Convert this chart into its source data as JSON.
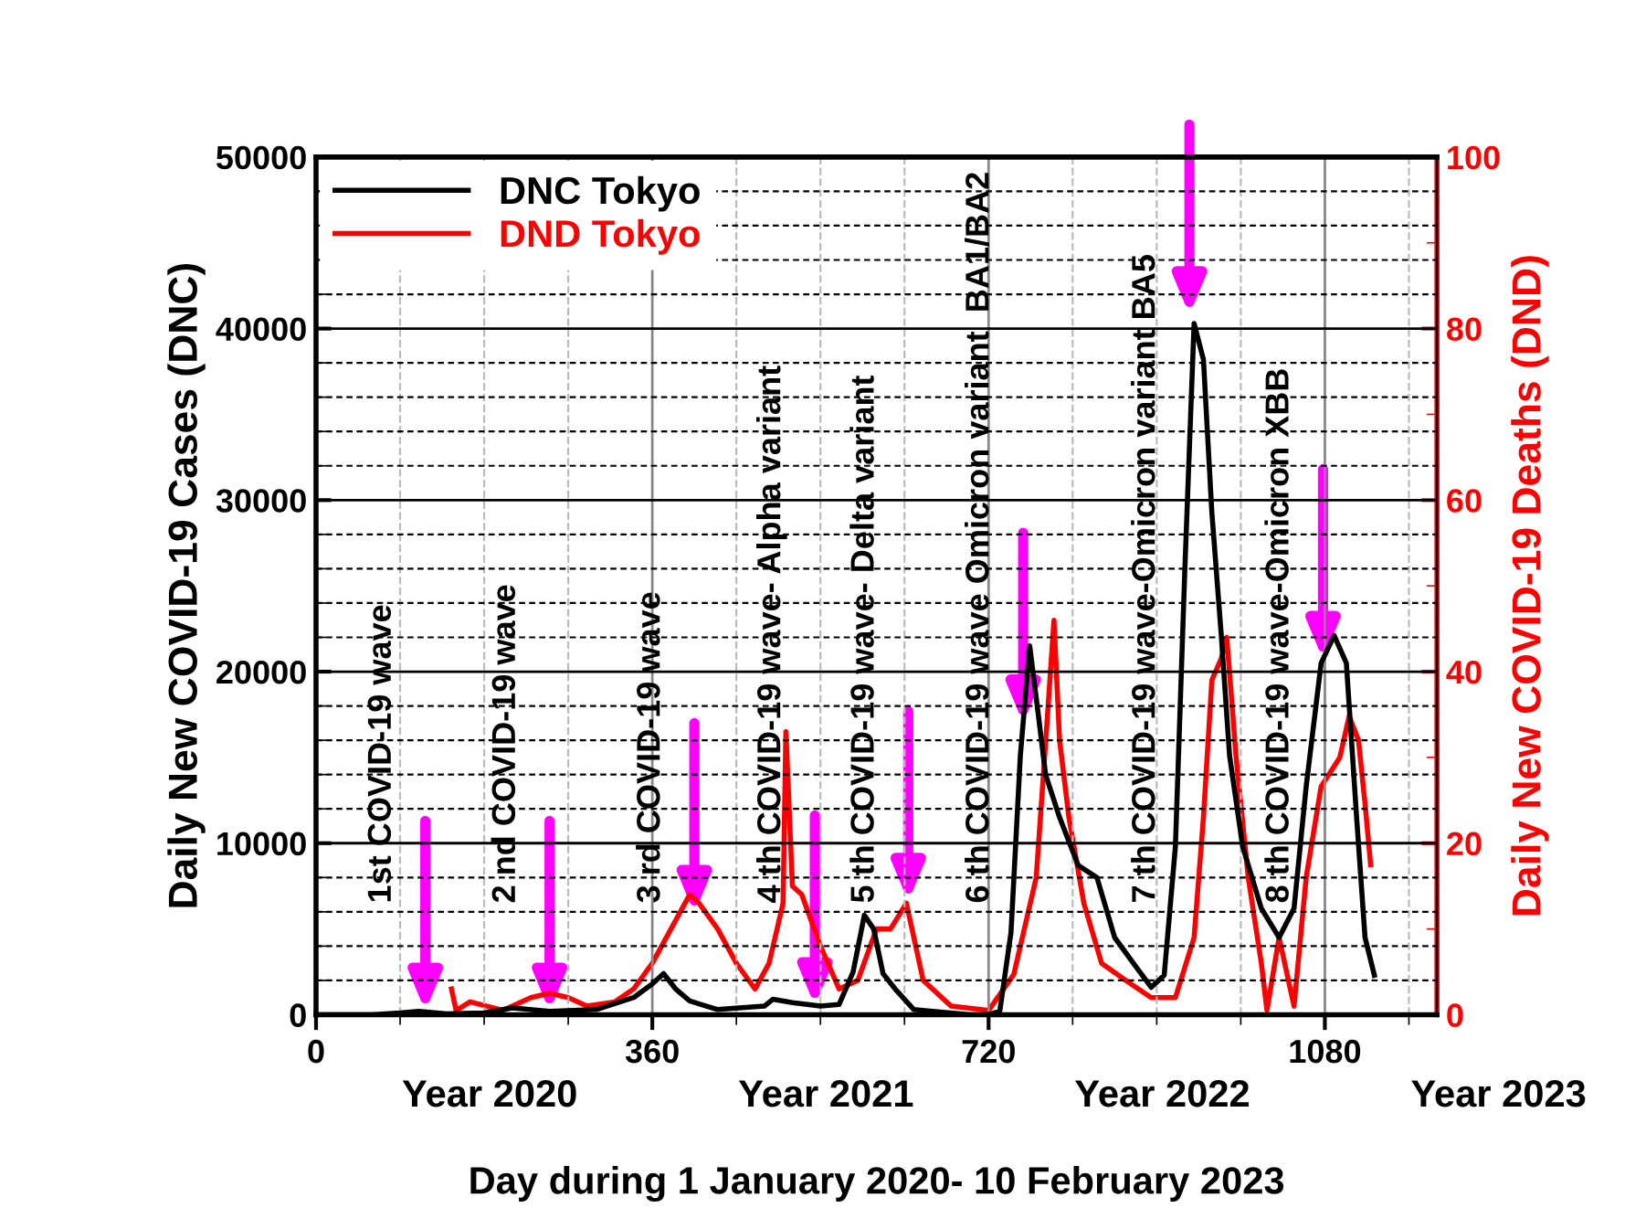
{
  "chart_data": {
    "type": "line",
    "xlabel": "Day during 1 January 2020- 10 February 2023",
    "ylabel": "Daily New COVID-19 Cases (DNC)",
    "y2label": "Daily New COVID-19 Deaths (DND)",
    "xlim": [
      0,
      1200
    ],
    "xticks": [
      0,
      360,
      720,
      1080
    ],
    "ylim": [
      0,
      50000
    ],
    "yticks": [
      0,
      10000,
      20000,
      30000,
      40000,
      50000
    ],
    "y2lim": [
      0,
      100
    ],
    "y2ticks": [
      0,
      20,
      40,
      60,
      80,
      100
    ],
    "grid": true,
    "legend": "top left",
    "line_style": "solid",
    "marker": "none",
    "series": [
      {
        "name": "DNC Tokyo",
        "color": "#000000",
        "x": [
          0,
          60,
          90,
          110,
          140,
          180,
          210,
          250,
          300,
          340,
          360,
          372,
          385,
          400,
          430,
          480,
          489,
          510,
          540,
          560,
          575,
          587,
          597,
          607,
          620,
          640,
          700,
          720,
          732,
          744,
          754,
          764,
          773,
          781,
          796,
          816,
          836,
          855,
          875,
          894,
          908,
          920,
          930,
          940,
          950,
          959,
          969,
          978,
          992,
          1012,
          1031,
          1047,
          1060,
          1076,
          1090,
          1103,
          1114,
          1123,
          1133
        ],
        "values": [
          0,
          0,
          100,
          200,
          50,
          100,
          400,
          200,
          300,
          1000,
          1800,
          2400,
          1500,
          800,
          300,
          500,
          900,
          700,
          500,
          600,
          2500,
          5800,
          5000,
          2400,
          1500,
          300,
          0,
          0,
          200,
          4800,
          15100,
          21500,
          17600,
          14000,
          11500,
          8700,
          8000,
          4500,
          3000,
          1600,
          2300,
          9800,
          25800,
          40300,
          38200,
          29300,
          22200,
          15100,
          9800,
          6200,
          4500,
          6200,
          13300,
          20500,
          22100,
          20500,
          11500,
          4500,
          2300
        ]
      },
      {
        "name": "DND Tokyo",
        "color": "#ff0000",
        "axis": "y2",
        "x": [
          145,
          150,
          165,
          200,
          230,
          250,
          270,
          290,
          320,
          340,
          360,
          380,
          400,
          410,
          430,
          450,
          470,
          485,
          500,
          503,
          510,
          520,
          540,
          560,
          580,
          600,
          615,
          632,
          650,
          680,
          720,
          747,
          771,
          781,
          790,
          796,
          806,
          822,
          841,
          867,
          894,
          920,
          940,
          950,
          959,
          969,
          975,
          985,
          998,
          1012,
          1018,
          1031,
          1047,
          1060,
          1076,
          1096,
          1106,
          1116,
          1123,
          1129
        ],
        "values": [
          3,
          0.5,
          1.5,
          0.5,
          2,
          2.5,
          2,
          1,
          1.5,
          3,
          6,
          10,
          14,
          13,
          10,
          6,
          3,
          6,
          13,
          33,
          15,
          14,
          8,
          3,
          4,
          10,
          10,
          13,
          4,
          1,
          0.5,
          4.7,
          16,
          31.6,
          46,
          32,
          23,
          13,
          6,
          4,
          2,
          2,
          9,
          23,
          39,
          41.5,
          44,
          30,
          16,
          6,
          0.5,
          9,
          1,
          16,
          26.6,
          30,
          34.8,
          32,
          24.6,
          17.5
        ]
      }
    ],
    "annotations": [
      {
        "text": "1st COVID-19 wave",
        "x": 117,
        "y": 200
      },
      {
        "text": "2 nd COVID-19 wave",
        "x": 250,
        "y": 200
      },
      {
        "text": "3 rd COVID-19 wave",
        "x": 405,
        "y": 5900
      },
      {
        "text": "4 th COVID-19 wave- Alpha variant",
        "x": 534,
        "y": 520
      },
      {
        "text": "5 th COVID-19 wave- Delta variant",
        "x": 634,
        "y": 6600
      },
      {
        "text": "6 th COVID-19 wave Omicron variant  BA1/BA2",
        "x": 757,
        "y": 17000
      },
      {
        "text": "7 th COVID-19 wave-Omicron variant BA5",
        "x": 935,
        "y": 40800
      },
      {
        "text": "8 th COVID-19 wave-Omicron XBB",
        "x": 1078,
        "y": 20700
      },
      "Year 2020",
      "Year 2021",
      "Year 2022",
      "Year 2023"
    ]
  }
}
